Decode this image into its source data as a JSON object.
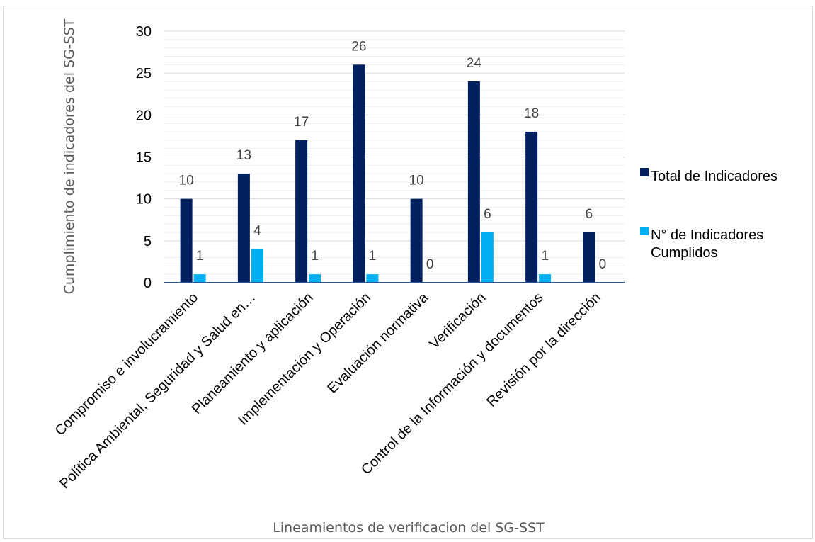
{
  "chart_data": {
    "type": "bar",
    "title": "",
    "xlabel": "Lineamientos de verificacion del SG-SST",
    "ylabel": "Cumplimiento de indicadores del SG-SST",
    "ylim": [
      0,
      30
    ],
    "yticks": [
      0,
      5,
      10,
      15,
      20,
      25,
      30
    ],
    "grid": true,
    "legend_position": "right",
    "categories": [
      "Compromiso e involucramiento",
      "Política Ambiental, Seguridad y Salud en…",
      "Planeamiento y aplicación",
      "Implementación y Operación",
      "Evaluación normativa",
      "Verificación",
      "Control de la Información y documentos",
      "Revisión por la dirección"
    ],
    "series": [
      {
        "name": "Total de Indicadores",
        "color": "#002060",
        "values": [
          10,
          13,
          17,
          26,
          10,
          24,
          18,
          6
        ]
      },
      {
        "name": "N° de Indicadores Cumplidos",
        "color": "#00b0f0",
        "values": [
          1,
          4,
          1,
          1,
          0,
          6,
          1,
          0
        ]
      }
    ]
  },
  "legend": {
    "items": [
      {
        "lines": [
          "Total de Indicadores"
        ]
      },
      {
        "lines": [
          "N° de Indicadores",
          "Cumplidos"
        ]
      }
    ]
  }
}
